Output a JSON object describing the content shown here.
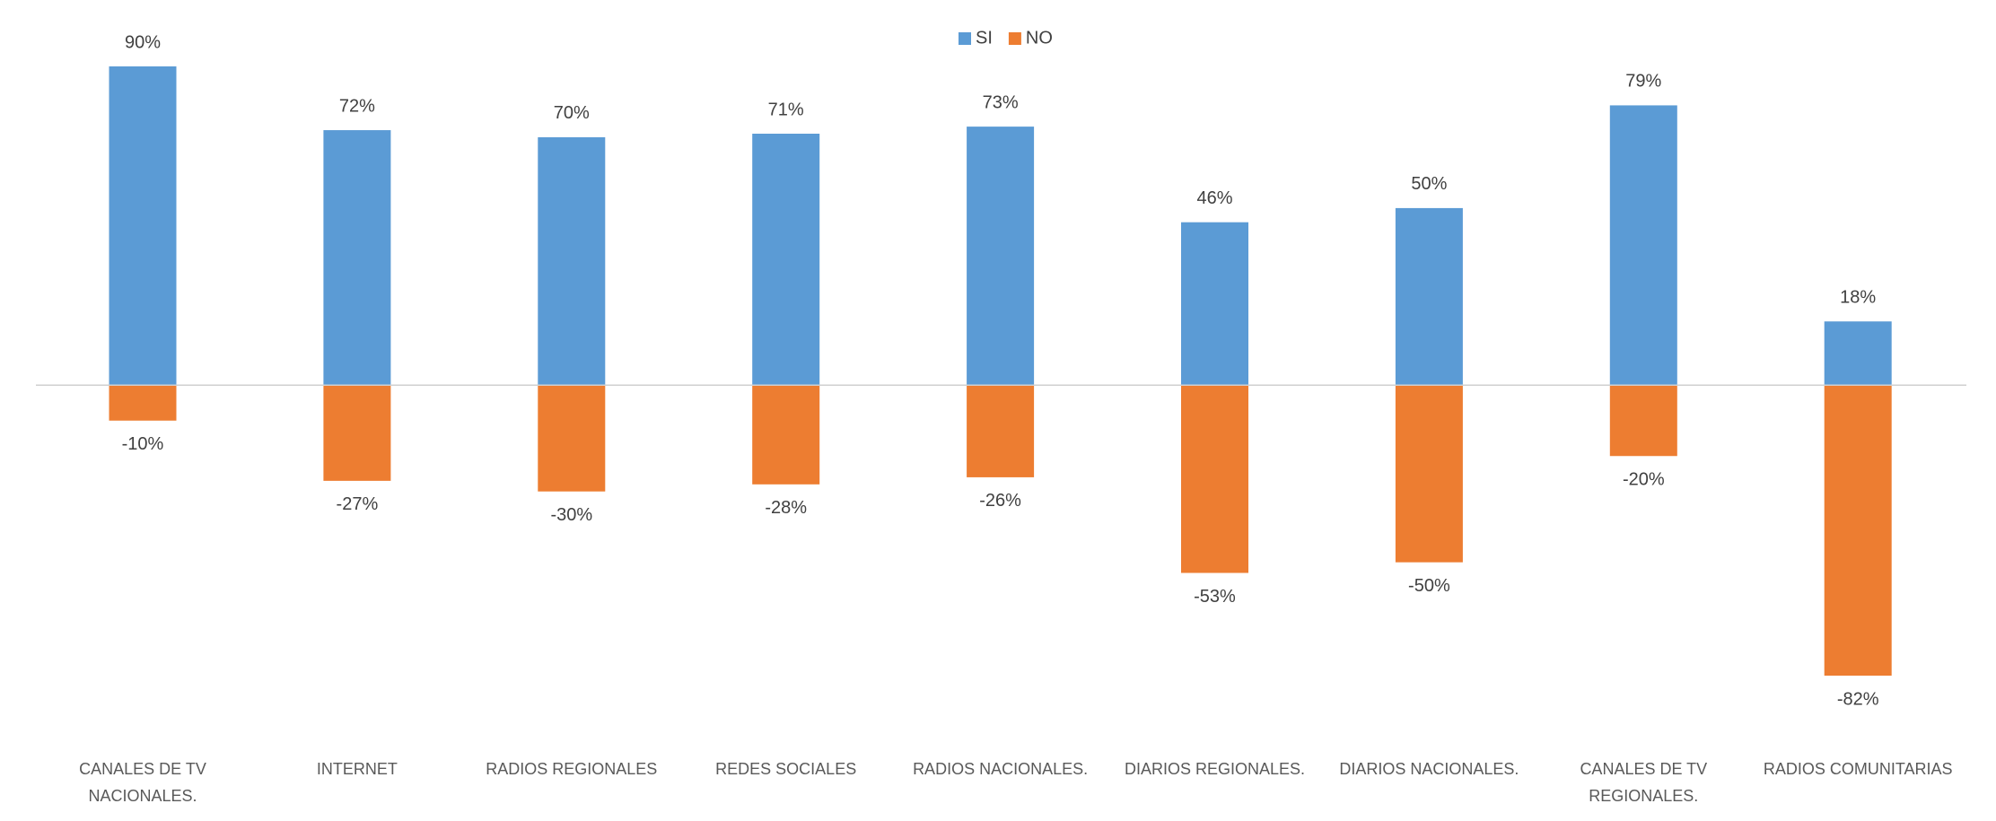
{
  "chart_data": {
    "type": "bar",
    "categories": [
      "CANALES DE TV NACIONALES.",
      "INTERNET",
      "RADIOS REGIONALES",
      "REDES SOCIALES",
      "RADIOS NACIONALES.",
      "DIARIOS REGIONALES.",
      "DIARIOS NACIONALES.",
      "CANALES DE TV REGIONALES.",
      "RADIOS COMUNITARIAS"
    ],
    "series": [
      {
        "name": "SI",
        "color": "#5b9bd5",
        "values": [
          90,
          72,
          70,
          71,
          73,
          46,
          50,
          79,
          18
        ],
        "value_labels": [
          "90%",
          "72%",
          "70%",
          "71%",
          "73%",
          "46%",
          "50%",
          "79%",
          "18%"
        ]
      },
      {
        "name": "NO",
        "color": "#ed7d31",
        "values": [
          -10,
          -27,
          -30,
          -28,
          -26,
          -53,
          -50,
          -20,
          -82
        ],
        "value_labels": [
          "-10%",
          "-27%",
          "-30%",
          "-28%",
          "-26%",
          "-53%",
          "-50%",
          "-20%",
          "-82%"
        ]
      }
    ],
    "legend": "top"
  }
}
